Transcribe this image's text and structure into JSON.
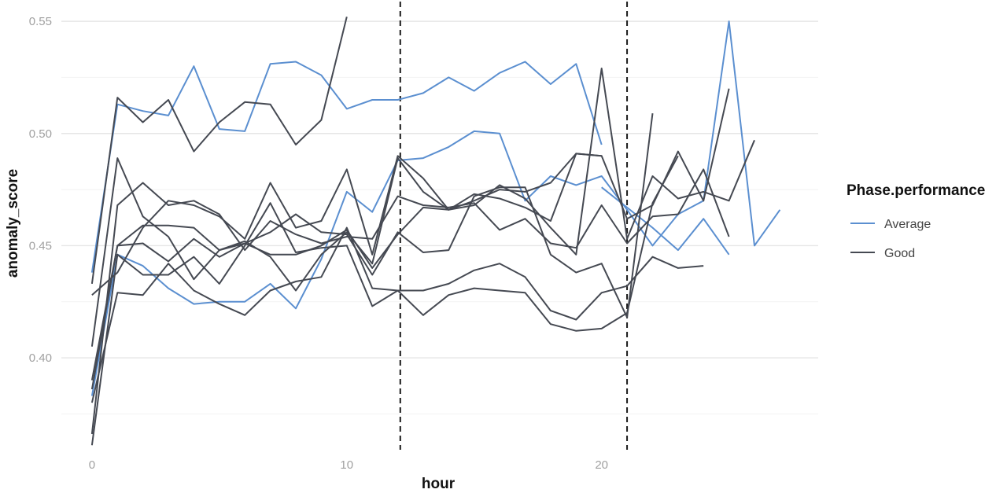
{
  "chart_data": {
    "type": "line",
    "xlabel": "hour",
    "ylabel": "anomaly_score",
    "xlim": [
      -1.2,
      28.5
    ],
    "ylim": [
      0.359,
      0.556
    ],
    "x_ticks": [
      0,
      10,
      20
    ],
    "y_ticks": [
      0.4,
      0.45,
      0.5,
      0.55
    ],
    "y_tick_labels": [
      "0.40",
      "0.45",
      "0.50",
      "0.55"
    ],
    "grid": true,
    "vlines": [
      12.1,
      21.0
    ],
    "legend": {
      "title": "Phase.performance",
      "placement": "right",
      "entries": [
        {
          "label": "Average",
          "color": "#5b8fd0"
        },
        {
          "label": "Good",
          "color": "#454952"
        }
      ]
    },
    "colors": {
      "Average": "#5b8fd0",
      "Good": "#454952"
    },
    "series": [
      {
        "group": "Average",
        "x": [
          0,
          1,
          2,
          3,
          4,
          5,
          6,
          7,
          8,
          9,
          10,
          11,
          12,
          13,
          14,
          15,
          16,
          17,
          18,
          19,
          20
        ],
        "y": [
          0.438,
          0.513,
          0.51,
          0.508,
          0.53,
          0.502,
          0.501,
          0.531,
          0.532,
          0.526,
          0.511,
          0.515,
          0.515,
          0.518,
          0.525,
          0.519,
          0.527,
          0.532,
          0.522,
          0.531,
          0.495
        ]
      },
      {
        "group": "Average",
        "x": [
          0,
          1,
          2,
          3,
          4,
          5,
          6,
          7,
          8,
          9,
          10,
          11,
          12,
          13,
          14,
          15,
          16,
          17,
          18,
          19,
          20,
          21,
          22,
          23,
          24,
          25,
          26,
          27
        ],
        "y": [
          0.383,
          0.446,
          0.441,
          0.431,
          0.424,
          0.425,
          0.425,
          0.433,
          0.422,
          0.444,
          0.474,
          0.465,
          0.488,
          0.489,
          0.494,
          0.501,
          0.5,
          0.47,
          0.481,
          0.477,
          0.481,
          0.466,
          0.45,
          0.464,
          0.47,
          0.55,
          0.45,
          0.466
        ]
      },
      {
        "group": "Average",
        "x": [
          20,
          21,
          22,
          23,
          24,
          25
        ],
        "y": [
          0.476,
          0.467,
          0.458,
          0.448,
          0.462,
          0.446
        ]
      },
      {
        "group": "Good",
        "x": [
          0,
          1,
          2,
          3,
          4,
          5,
          6,
          7,
          8,
          9,
          10
        ],
        "y": [
          0.433,
          0.516,
          0.505,
          0.515,
          0.492,
          0.505,
          0.514,
          0.513,
          0.495,
          0.506,
          0.552
        ]
      },
      {
        "group": "Good",
        "x": [
          0,
          1,
          2,
          3,
          4,
          5,
          6,
          7,
          8,
          9,
          10,
          11,
          12,
          13,
          14,
          15,
          16,
          17,
          18,
          19,
          20
        ],
        "y": [
          0.428,
          0.438,
          0.458,
          0.47,
          0.468,
          0.463,
          0.453,
          0.478,
          0.458,
          0.461,
          0.484,
          0.446,
          0.49,
          0.48,
          0.466,
          0.473,
          0.471,
          0.467,
          0.461,
          0.491,
          0.49
        ]
      },
      {
        "group": "Good",
        "x": [
          0,
          1,
          2,
          3,
          4,
          5,
          6,
          7,
          8,
          9,
          10,
          11,
          12,
          13,
          14,
          15,
          16,
          17,
          18,
          19,
          20,
          21,
          22,
          23,
          24,
          25,
          26
        ],
        "y": [
          0.405,
          0.489,
          0.463,
          0.454,
          0.435,
          0.448,
          0.452,
          0.445,
          0.43,
          0.446,
          0.456,
          0.442,
          0.489,
          0.474,
          0.466,
          0.468,
          0.477,
          0.471,
          0.458,
          0.446,
          0.529,
          0.453,
          0.481,
          0.471,
          0.474,
          0.47,
          0.497
        ]
      },
      {
        "group": "Good",
        "x": [
          0,
          1,
          2,
          3,
          4,
          5,
          6,
          7,
          8,
          9,
          10,
          11,
          12,
          13,
          14,
          15,
          16,
          17,
          18,
          19,
          20,
          21,
          22,
          23,
          24,
          25
        ],
        "y": [
          0.39,
          0.45,
          0.451,
          0.443,
          0.453,
          0.445,
          0.451,
          0.446,
          0.446,
          0.45,
          0.457,
          0.44,
          0.455,
          0.467,
          0.466,
          0.47,
          0.475,
          0.474,
          0.478,
          0.491,
          0.49,
          0.462,
          0.468,
          0.492,
          0.47,
          0.52
        ]
      },
      {
        "group": "Good",
        "x": [
          0,
          1,
          2,
          3,
          4,
          5,
          6,
          7,
          8,
          9,
          10,
          11,
          12,
          13,
          14,
          15,
          16,
          17,
          18,
          19,
          20,
          21,
          22,
          23,
          24,
          25
        ],
        "y": [
          0.366,
          0.468,
          0.478,
          0.468,
          0.47,
          0.464,
          0.448,
          0.461,
          0.455,
          0.451,
          0.454,
          0.453,
          0.472,
          0.468,
          0.467,
          0.469,
          0.457,
          0.462,
          0.451,
          0.449,
          0.468,
          0.451,
          0.463,
          0.464,
          0.484,
          0.454
        ]
      },
      {
        "group": "Good",
        "x": [
          0,
          1,
          2,
          3,
          4,
          5,
          6,
          7,
          8,
          9,
          10,
          11,
          12,
          13,
          14,
          15,
          16,
          17,
          18,
          19,
          20,
          21,
          22,
          23,
          24
        ],
        "y": [
          0.38,
          0.429,
          0.428,
          0.442,
          0.43,
          0.424,
          0.419,
          0.43,
          0.434,
          0.436,
          0.458,
          0.431,
          0.43,
          0.43,
          0.433,
          0.439,
          0.442,
          0.436,
          0.421,
          0.417,
          0.429,
          0.432,
          0.445,
          0.44,
          0.441
        ]
      },
      {
        "group": "Good",
        "x": [
          0,
          1,
          2,
          3,
          4,
          5,
          6,
          7,
          8,
          9,
          10,
          11,
          12,
          13,
          14,
          15,
          16,
          17,
          18,
          19,
          20,
          21,
          22,
          23
        ],
        "y": [
          0.361,
          0.446,
          0.437,
          0.437,
          0.445,
          0.433,
          0.45,
          0.469,
          0.447,
          0.449,
          0.45,
          0.423,
          0.43,
          0.419,
          0.428,
          0.431,
          0.43,
          0.429,
          0.415,
          0.412,
          0.413,
          0.42,
          0.469,
          0.49
        ]
      },
      {
        "group": "Good",
        "x": [
          0,
          1,
          2,
          3,
          4,
          5,
          6,
          7,
          8,
          9,
          10,
          11,
          12,
          13,
          14,
          15,
          16,
          17,
          18,
          19,
          20,
          21,
          22
        ],
        "y": [
          0.386,
          0.45,
          0.459,
          0.459,
          0.458,
          0.448,
          0.451,
          0.456,
          0.464,
          0.456,
          0.455,
          0.437,
          0.456,
          0.447,
          0.448,
          0.472,
          0.476,
          0.476,
          0.446,
          0.438,
          0.442,
          0.418,
          0.509
        ]
      }
    ]
  }
}
